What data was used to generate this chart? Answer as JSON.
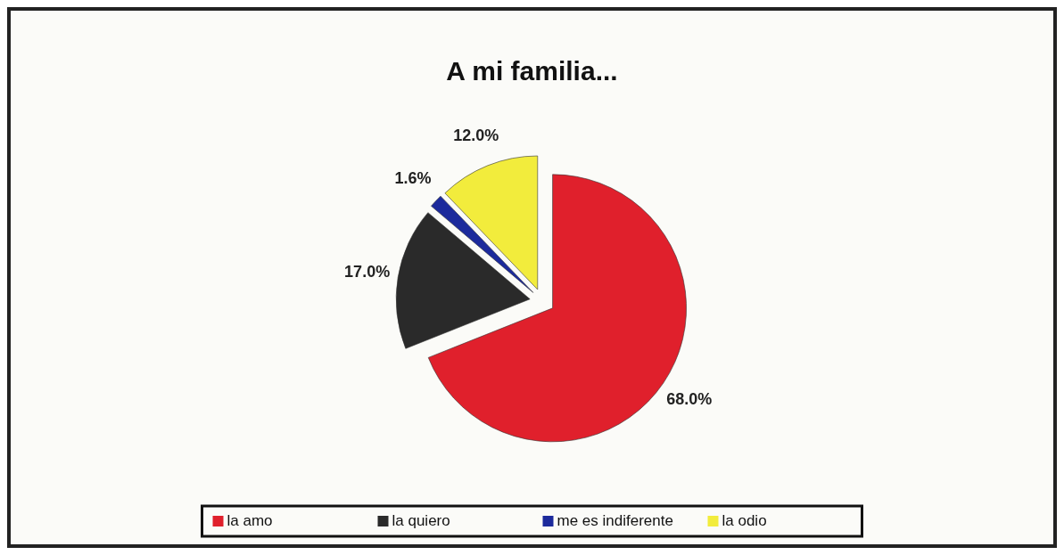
{
  "chart_data": {
    "type": "pie",
    "title": "A mi familia...",
    "categories": [
      "la amo",
      "la quiero",
      "me es indiferente",
      "la odio"
    ],
    "values": [
      68.0,
      17.0,
      1.6,
      12.0
    ],
    "colors": [
      "#e0202c",
      "#2a2a2a",
      "#1c2a9c",
      "#f2ec3c"
    ],
    "value_labels": [
      "68.0%",
      "17.0%",
      "1.6%",
      "12.0%"
    ],
    "legend": "bottom"
  }
}
